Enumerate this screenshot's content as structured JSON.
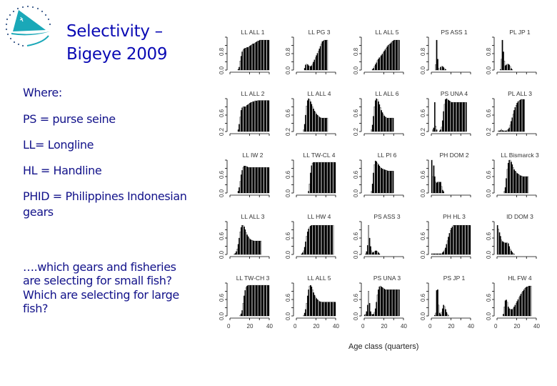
{
  "slide": {
    "title_line1": "Selectivity –",
    "title_line2": "Bigeye 2009",
    "logo_icon": "spc-sailboat-logo-icon",
    "legend_heading": "Where:",
    "legend_items": [
      "PS = purse seine",
      "LL= Longline",
      "HL = Handline",
      "PHID = Philippines Indonesian",
      "gears"
    ],
    "question_lines": [
      "….which gears and fisheries",
      "are selecting for small fish?",
      "Which are selecting for large",
      "fish?"
    ],
    "colors": {
      "title": "#0a0ab4",
      "body_text": "#12128a",
      "logo": "#1aa8b8",
      "bar_dark": "#000000",
      "bar_light": "#c8c8c8"
    }
  },
  "chart_data": {
    "type": "bar",
    "title": "Selectivity – Bigeye 2009",
    "xlabel": "Age class (quarters)",
    "ylabel": "",
    "x_ticks": [
      0,
      20,
      40
    ],
    "x_range": [
      0,
      40
    ],
    "layout": "5x5 small multiples",
    "panels": [
      {
        "title": "LL ALL 1",
        "yticks": [
          "0.0",
          "0.8"
        ],
        "values": [
          0,
          0,
          0,
          0,
          0,
          0,
          0,
          0,
          0.02,
          0.08,
          0.25,
          0.38,
          0.5,
          0.55,
          0.58,
          0.6,
          0.6,
          0.62,
          0.62,
          0.64,
          0.66,
          0.68,
          0.7,
          0.72,
          0.72,
          0.74,
          0.76,
          0.78,
          0.8,
          0.8,
          0.82,
          0.82,
          0.82,
          0.82,
          0.82,
          0.82,
          0.82,
          0.82,
          0.82,
          0.82
        ]
      },
      {
        "title": "LL PG 3",
        "yticks": [
          "0.0",
          "0.8"
        ],
        "values": [
          0,
          0,
          0,
          0,
          0,
          0,
          0,
          0,
          0.05,
          0.14,
          0.16,
          0.15,
          0.12,
          0.1,
          0.1,
          0.12,
          0.16,
          0.22,
          0.28,
          0.34,
          0.4,
          0.46,
          0.52,
          0.58,
          0.65,
          0.72,
          0.78,
          0.8,
          0.82,
          0.82,
          0.82,
          0.82
        ]
      },
      {
        "title": "LL ALL 5",
        "yticks": [
          "0.0",
          "0.8"
        ],
        "values": [
          0,
          0,
          0,
          0,
          0,
          0,
          0,
          0,
          0.02,
          0.05,
          0.1,
          0.15,
          0.2,
          0.26,
          0.3,
          0.34,
          0.36,
          0.4,
          0.44,
          0.48,
          0.52,
          0.56,
          0.6,
          0.64,
          0.68,
          0.7,
          0.72,
          0.75,
          0.78,
          0.8,
          0.82,
          0.82,
          0.82,
          0.82,
          0.82,
          0.82
        ]
      },
      {
        "title": "PS ASS 1",
        "yticks": [
          "0.0",
          "0.8"
        ],
        "values": [
          0,
          0,
          0,
          0,
          0.15,
          0.82,
          0.3,
          0.05,
          0,
          0.08,
          0.1,
          0.1,
          0.07,
          0.04,
          0.02,
          0,
          0,
          0,
          0,
          0,
          0,
          0,
          0,
          0,
          0,
          0,
          0,
          0,
          0,
          0,
          0,
          0,
          0,
          0,
          0,
          0,
          0,
          0,
          0,
          0
        ]
      },
      {
        "title": "PL JP 1",
        "yticks": [
          "0.0",
          "0.8"
        ],
        "values": [
          0,
          0,
          0,
          0.02,
          0.3,
          0.82,
          0.5,
          0.25,
          0.12,
          0.14,
          0.16,
          0.16,
          0.14,
          0.1,
          0.04,
          0.01,
          0,
          0,
          0,
          0,
          0,
          0,
          0,
          0,
          0,
          0,
          0,
          0,
          0,
          0,
          0,
          0,
          0,
          0,
          0,
          0,
          0,
          0,
          0,
          0
        ]
      },
      {
        "title": "LL ALL 2",
        "yticks": [
          "0.2",
          "0.6"
        ],
        "values": [
          0,
          0,
          0,
          0,
          0,
          0,
          0,
          0,
          0.05,
          0.2,
          0.4,
          0.58,
          0.65,
          0.68,
          0.68,
          0.68,
          0.68,
          0.72,
          0.74,
          0.76,
          0.78,
          0.8,
          0.8,
          0.82,
          0.82,
          0.84,
          0.84,
          0.84,
          0.85,
          0.85,
          0.85,
          0.85,
          0.85,
          0.85,
          0.85,
          0.85,
          0.85,
          0.85,
          0.85,
          0.85
        ]
      },
      {
        "title": "LL ALL 4",
        "yticks": [
          "0.2",
          "0.6"
        ],
        "values": [
          0,
          0,
          0,
          0,
          0,
          0,
          0,
          0.05,
          0.2,
          0.45,
          0.7,
          0.85,
          0.9,
          0.88,
          0.82,
          0.75,
          0.68,
          0.62,
          0.56,
          0.52,
          0.48,
          0.45,
          0.42,
          0.4,
          0.38,
          0.37,
          0.37,
          0.37,
          0.37,
          0.37,
          0.37,
          0.37
        ]
      },
      {
        "title": "LL ALL 6",
        "yticks": [
          "0.2",
          "0.6"
        ],
        "values": [
          0,
          0,
          0,
          0,
          0,
          0,
          0,
          0.05,
          0.18,
          0.42,
          0.68,
          0.85,
          0.9,
          0.88,
          0.82,
          0.74,
          0.66,
          0.58,
          0.52,
          0.47,
          0.43,
          0.4,
          0.38,
          0.37,
          0.37,
          0.37,
          0.37,
          0.37,
          0.37,
          0.37
        ]
      },
      {
        "title": "PS UNA 4",
        "yticks": [
          "0.2",
          "0.6"
        ],
        "values": [
          0,
          0.05,
          0.1,
          0.8,
          0.15,
          0.05,
          0,
          0,
          0.02,
          0.05,
          0.12,
          0.3,
          0.55,
          0.75,
          0.88,
          0.9,
          0.88,
          0.86,
          0.84,
          0.82,
          0.8,
          0.8,
          0.8,
          0.8,
          0.8,
          0.8,
          0.8,
          0.8,
          0.8,
          0.8,
          0.8,
          0.8,
          0.8,
          0.8,
          0.8,
          0.8
        ]
      },
      {
        "title": "PL ALL 3",
        "yticks": [
          "0.2",
          "0.6"
        ],
        "values": [
          0,
          0.02,
          0.02,
          0.03,
          0.06,
          0.03,
          0.02,
          0.02,
          0.02,
          0.02,
          0.04,
          0.06,
          0.1,
          0.18,
          0.28,
          0.38,
          0.48,
          0.58,
          0.66,
          0.72,
          0.78,
          0.82,
          0.84,
          0.86,
          0.88,
          0.88,
          0.88,
          0.88
        ]
      },
      {
        "title": "LL IW 2",
        "yticks": [
          "0.0",
          "0.6"
        ],
        "values": [
          0,
          0,
          0,
          0,
          0,
          0,
          0,
          0,
          0.05,
          0.15,
          0.32,
          0.5,
          0.62,
          0.7,
          0.74,
          0.74,
          0.73,
          0.72,
          0.7,
          0.7,
          0.7,
          0.7,
          0.7,
          0.7,
          0.7,
          0.7,
          0.7,
          0.7,
          0.7,
          0.7,
          0.7,
          0.7,
          0.7,
          0.7,
          0.7,
          0.7,
          0.7,
          0.7,
          0.7,
          0.7
        ]
      },
      {
        "title": "LL TW-CL 4",
        "yticks": [
          "0.0",
          "0.6"
        ],
        "values": [
          0,
          0,
          0,
          0,
          0,
          0,
          0,
          0,
          0,
          0,
          0,
          0,
          0.05,
          0.25,
          0.55,
          0.75,
          0.82,
          0.84,
          0.84,
          0.84,
          0.84,
          0.84,
          0.84,
          0.84,
          0.84,
          0.84,
          0.84,
          0.84,
          0.84,
          0.84,
          0.84,
          0.84,
          0.84,
          0.84,
          0.84,
          0.84,
          0.84,
          0.84,
          0.84,
          0.84
        ]
      },
      {
        "title": "LL PI 6",
        "yticks": [
          "0.0",
          "0.6"
        ],
        "values": [
          0,
          0,
          0,
          0,
          0,
          0,
          0,
          0.05,
          0.25,
          0.55,
          0.78,
          0.88,
          0.86,
          0.82,
          0.78,
          0.74,
          0.7,
          0.68,
          0.66,
          0.65,
          0.64,
          0.63,
          0.62,
          0.61,
          0.6,
          0.6,
          0.6,
          0.6,
          0.6,
          0.6
        ]
      },
      {
        "title": "PH DOM 2",
        "yticks": [
          "0.0",
          "0.6"
        ],
        "values": [
          0.9,
          0.45,
          0.75,
          0.45,
          0.3,
          0.28,
          0.3,
          0.3,
          0.3,
          0.3,
          0.18,
          0.08,
          0.04,
          0,
          0,
          0,
          0,
          0,
          0,
          0,
          0,
          0,
          0,
          0,
          0,
          0,
          0,
          0,
          0,
          0,
          0,
          0,
          0,
          0,
          0,
          0,
          0,
          0,
          0,
          0
        ]
      },
      {
        "title": "LL Bismarck 3",
        "yticks": [
          "0.0",
          "0.6"
        ],
        "values": [
          0,
          0,
          0,
          0,
          0,
          0,
          0,
          0.05,
          0.15,
          0.4,
          0.65,
          0.82,
          0.9,
          0.9,
          0.85,
          0.78,
          0.7,
          0.64,
          0.6,
          0.57,
          0.54,
          0.52,
          0.5,
          0.48,
          0.47,
          0.46,
          0.45,
          0.45,
          0.45,
          0.45,
          0.45,
          0.45
        ]
      },
      {
        "title": "LL ALL 3",
        "yticks": [
          "0.0",
          "0.6"
        ],
        "values": [
          0,
          0,
          0,
          0,
          0.01,
          0.03,
          0.08,
          0.15,
          0.28,
          0.45,
          0.62,
          0.74,
          0.8,
          0.8,
          0.76,
          0.68,
          0.6,
          0.54,
          0.49,
          0.45,
          0.42,
          0.4,
          0.39,
          0.38,
          0.37,
          0.37,
          0.37,
          0.37,
          0.37,
          0.37,
          0.37,
          0.37
        ]
      },
      {
        "title": "LL HW 4",
        "yticks": [
          "0.0",
          "0.6"
        ],
        "values": [
          0,
          0,
          0,
          0,
          0,
          0.02,
          0.05,
          0.1,
          0.2,
          0.35,
          0.5,
          0.62,
          0.7,
          0.75,
          0.78,
          0.8,
          0.8,
          0.8,
          0.8,
          0.8,
          0.8,
          0.8,
          0.8,
          0.8,
          0.8,
          0.8,
          0.8,
          0.8,
          0.8,
          0.8,
          0.8,
          0.8,
          0.8,
          0.8,
          0.8,
          0.8,
          0.8,
          0.8
        ]
      },
      {
        "title": "PS ASS 3",
        "yticks": [
          "0.0",
          "0.6"
        ],
        "values": [
          0,
          0.02,
          0.08,
          0.25,
          0.8,
          0.45,
          0.22,
          0.1,
          0.05,
          0.06,
          0.08,
          0.1,
          0.1,
          0.08,
          0.05,
          0.02,
          0,
          0,
          0,
          0,
          0,
          0,
          0,
          0,
          0,
          0,
          0,
          0,
          0,
          0,
          0,
          0,
          0,
          0,
          0,
          0,
          0,
          0,
          0,
          0
        ]
      },
      {
        "title": "PH HL 3",
        "yticks": [
          "0.0",
          "0.6"
        ],
        "values": [
          0.02,
          0.02,
          0.02,
          0.02,
          0.02,
          0.02,
          0.02,
          0.02,
          0.02,
          0.02,
          0.02,
          0.05,
          0.08,
          0.12,
          0.18,
          0.28,
          0.38,
          0.48,
          0.58,
          0.66,
          0.72,
          0.76,
          0.8,
          0.8,
          0.8,
          0.8,
          0.8,
          0.8,
          0.8,
          0.8,
          0.8,
          0.8,
          0.8,
          0.8,
          0.8,
          0.8,
          0.8,
          0.8,
          0.8,
          0.8
        ]
      },
      {
        "title": "ID DOM 3",
        "yticks": [
          "0.0",
          "0.6"
        ],
        "values": [
          0.8,
          0.7,
          0.6,
          0.5,
          0.4,
          0.36,
          0.34,
          0.32,
          0.32,
          0.32,
          0.32,
          0.3,
          0.22,
          0.15,
          0.1,
          0.06,
          0.03,
          0.01,
          0,
          0,
          0,
          0,
          0,
          0,
          0,
          0,
          0,
          0,
          0,
          0,
          0,
          0,
          0,
          0,
          0,
          0,
          0,
          0,
          0,
          0
        ]
      },
      {
        "title": "LL TW-CH 3",
        "yticks": [
          "0.0",
          "0.6"
        ],
        "values": [
          0,
          0,
          0,
          0,
          0,
          0,
          0,
          0,
          0,
          0,
          0.02,
          0.06,
          0.15,
          0.35,
          0.55,
          0.7,
          0.78,
          0.82,
          0.84,
          0.84,
          0.84,
          0.84,
          0.84,
          0.84,
          0.84,
          0.84,
          0.84,
          0.84,
          0.84,
          0.84,
          0.84,
          0.84,
          0.84,
          0.84,
          0.84,
          0.84,
          0.84,
          0.84,
          0.84,
          0.84
        ]
      },
      {
        "title": "LL ALL 5",
        "yticks": [
          "0.0",
          "0.6"
        ],
        "values": [
          0,
          0,
          0,
          0,
          0,
          0,
          0,
          0.02,
          0.08,
          0.18,
          0.35,
          0.55,
          0.72,
          0.82,
          0.84,
          0.8,
          0.72,
          0.64,
          0.57,
          0.52,
          0.48,
          0.45,
          0.42,
          0.4,
          0.39,
          0.38,
          0.38,
          0.38,
          0.38,
          0.38,
          0.38,
          0.38,
          0.38,
          0.38,
          0.38,
          0.38,
          0.38,
          0.38,
          0.38,
          0.38
        ]
      },
      {
        "title": "PS UNA 3",
        "yticks": [
          "0.0",
          "0.6"
        ],
        "values": [
          0.03,
          0.05,
          0.12,
          0.3,
          0.68,
          0.35,
          0.12,
          0.05,
          0.04,
          0.05,
          0.1,
          0.2,
          0.38,
          0.58,
          0.72,
          0.8,
          0.82,
          0.8,
          0.78,
          0.76,
          0.74,
          0.72,
          0.72,
          0.72,
          0.72,
          0.72,
          0.72,
          0.72,
          0.72,
          0.72,
          0.72,
          0.72,
          0.72,
          0.72,
          0.72,
          0.72
        ]
      },
      {
        "title": "PS JP 1",
        "yticks": [
          "0.0",
          "0.6"
        ],
        "values": [
          0,
          0,
          0,
          0.02,
          0.08,
          0.7,
          0.72,
          0.3,
          0.08,
          0.04,
          0.1,
          0.2,
          0.3,
          0.26,
          0.18,
          0.1,
          0.05,
          0.01,
          0,
          0,
          0,
          0,
          0,
          0,
          0,
          0,
          0,
          0,
          0,
          0,
          0,
          0,
          0,
          0,
          0,
          0,
          0,
          0,
          0,
          0
        ]
      },
      {
        "title": "HL FW 4",
        "yticks": [
          "0.0",
          "0.6"
        ],
        "values": [
          0,
          0,
          0,
          0,
          0,
          0,
          0.05,
          0.25,
          0.42,
          0.44,
          0.38,
          0.25,
          0.2,
          0.18,
          0.18,
          0.18,
          0.2,
          0.25,
          0.3,
          0.35,
          0.4,
          0.45,
          0.5,
          0.55,
          0.6,
          0.64,
          0.68,
          0.72,
          0.76,
          0.78,
          0.8,
          0.8,
          0.82,
          0.82,
          0.82
        ]
      }
    ]
  }
}
